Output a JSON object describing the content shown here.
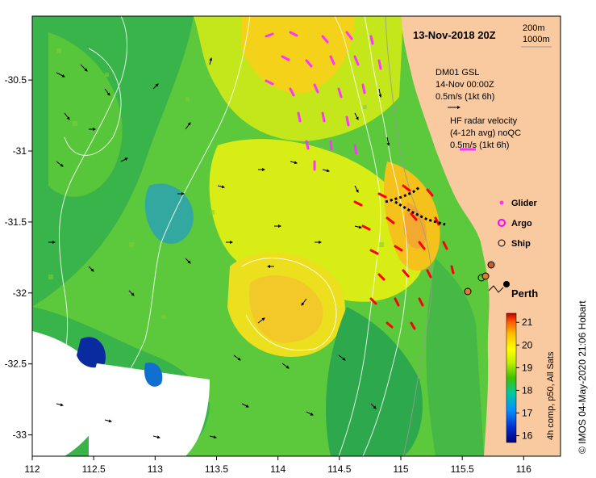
{
  "map": {
    "title": "13-Nov-2018 20Z",
    "isobath_labels": [
      "200m",
      "1000m"
    ],
    "glider_legend": {
      "line1": "DM01 GSL",
      "line2": "14-Nov 00:00Z",
      "scale": "0.5m/s (1kt 6h)"
    },
    "radar_legend": {
      "line1": "HF radar velocity",
      "line2": "(4-12h avg) noQC",
      "scale": "0.5m/s (1kt 6h)"
    },
    "markers": [
      {
        "label": "Glider",
        "color": "#ff33ff",
        "icon": "glider-dot-icon"
      },
      {
        "label": "Argo",
        "color": "#ff00ff",
        "icon": "argo-ring-icon"
      },
      {
        "label": "Ship",
        "color": "#000000",
        "icon": "ship-ring-icon"
      }
    ],
    "city": "Perth",
    "x_ticks": [
      "112",
      "112.5",
      "113",
      "113.5",
      "114",
      "114.5",
      "115",
      "115.5",
      "116"
    ],
    "y_ticks": [
      "-30.5",
      "-31",
      "-31.5",
      "-32",
      "-32.5",
      "-33"
    ],
    "x_tick_values": [
      112,
      112.5,
      113,
      113.5,
      114,
      114.5,
      115,
      115.5,
      116
    ],
    "y_tick_values": [
      -30.5,
      -31,
      -31.5,
      -32,
      -32.5,
      -33
    ],
    "lon_range": [
      112,
      116.3
    ],
    "lat_range": [
      -33.15,
      -30.05
    ],
    "colorbar": {
      "label": "4h comp, p50, All Sats",
      "ticks": [
        "21",
        "20",
        "19",
        "18",
        "17",
        "16"
      ],
      "tick_values": [
        21,
        20,
        19,
        18,
        17,
        16
      ],
      "range": [
        15.7,
        21.4
      ]
    },
    "credit": "© IMOS 04-May-2020 21:06 Hobart",
    "colors": {
      "land": "#f9c9a0",
      "glider_vectors": "#ff33ff",
      "radar_vectors": "#ff0000",
      "current_vectors": "#000000"
    }
  }
}
